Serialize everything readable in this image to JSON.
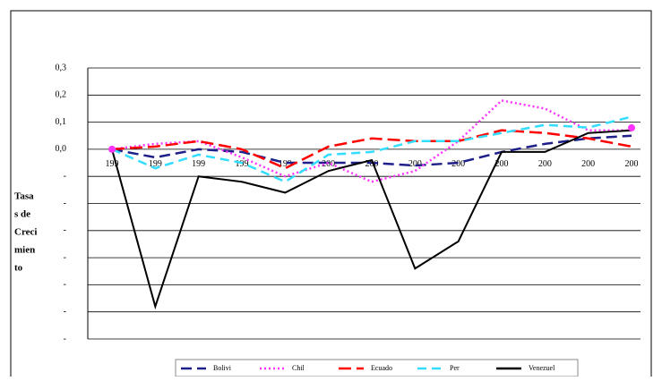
{
  "chart_data": {
    "type": "line",
    "ylabel": [
      "Tasa",
      "s de",
      "Creci",
      "mien",
      "to"
    ],
    "categories": [
      "199",
      "199",
      "199",
      "199",
      "199",
      "200",
      "200",
      "200",
      "200",
      "200",
      "200",
      "200",
      "200"
    ],
    "series": [
      {
        "name": "Bolivi",
        "color": "#1f1f8a",
        "dash": "12,6",
        "values": [
          0,
          -0.03,
          0,
          -0.01,
          -0.05,
          -0.05,
          -0.05,
          -0.06,
          -0.05,
          -0.01,
          0.02,
          0.04,
          0.05
        ]
      },
      {
        "name": "Chil",
        "color": "#ff33ff",
        "dash": "2,3",
        "values": [
          0,
          0.02,
          0.03,
          -0.03,
          -0.1,
          -0.05,
          -0.12,
          -0.08,
          0.03,
          0.18,
          0.15,
          0.07,
          0.07
        ]
      },
      {
        "name": "Ecuado",
        "color": "#ff0000",
        "dash": "14,6",
        "values": [
          0,
          0.01,
          0.03,
          0,
          -0.07,
          0.01,
          0.04,
          0.03,
          0.03,
          0.07,
          0.06,
          0.04,
          0.01
        ]
      },
      {
        "name": "Per",
        "color": "#33ddff",
        "dash": "10,6",
        "values": [
          0,
          -0.07,
          -0.02,
          -0.05,
          -0.12,
          -0.02,
          -0.01,
          0.03,
          0.03,
          0.06,
          0.09,
          0.08,
          0.12
        ]
      },
      {
        "name": "Venezuel",
        "color": "#000000",
        "dash": "",
        "values": [
          0,
          -0.58,
          -0.1,
          -0.12,
          -0.16,
          -0.08,
          -0.04,
          -0.44,
          -0.34,
          -0.01,
          -0.01,
          0.06,
          0.07
        ]
      }
    ],
    "ylim": [
      -0.7,
      0.3
    ],
    "yticks": [
      {
        "value": 0.3,
        "label": "0,3"
      },
      {
        "value": 0.2,
        "label": "0,2"
      },
      {
        "value": 0.1,
        "label": "0,1"
      },
      {
        "value": 0,
        "label": "0,0"
      },
      {
        "value": -0.1,
        "label": "-"
      },
      {
        "value": -0.2,
        "label": "-"
      },
      {
        "value": -0.3,
        "label": "-"
      },
      {
        "value": -0.4,
        "label": "-"
      },
      {
        "value": -0.5,
        "label": "-"
      },
      {
        "value": -0.6,
        "label": "-"
      },
      {
        "value": -0.7,
        "label": "-"
      }
    ],
    "grid": true
  }
}
